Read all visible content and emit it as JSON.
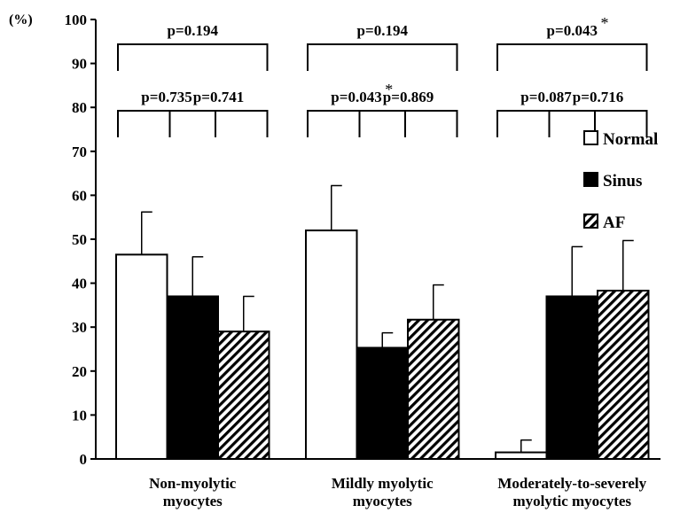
{
  "chart_data": {
    "type": "bar",
    "ylabel": "(%)",
    "ylim": [
      0,
      100
    ],
    "yticks": [
      "0",
      "10",
      "20",
      "30",
      "40",
      "50",
      "60",
      "70",
      "80",
      "90",
      "100"
    ],
    "grid": false,
    "legend_position": "right",
    "categories": [
      [
        "Non-myolytic",
        "myocytes"
      ],
      [
        "Mildly myolytic",
        "myocytes"
      ],
      [
        "Moderately-to-severely",
        "myolytic myocytes"
      ]
    ],
    "series": [
      {
        "name": "Normal",
        "fill": "white",
        "values": [
          46.5,
          52,
          1.5
        ],
        "errors": [
          9.7,
          10.2,
          2.8
        ]
      },
      {
        "name": "Sinus",
        "fill": "black",
        "values": [
          37,
          25.3,
          37
        ],
        "errors": [
          9,
          3.4,
          11.3
        ]
      },
      {
        "name": "AF",
        "fill": "hatch",
        "values": [
          29,
          31.7,
          38.3
        ],
        "errors": [
          8,
          7.9,
          11.4
        ]
      }
    ],
    "comparisons": [
      {
        "group": 0,
        "from": 0,
        "to": 2,
        "label": "p=0.194",
        "star": ""
      },
      {
        "group": 0,
        "from": 0,
        "to": 1,
        "label": "p=0.735",
        "star": ""
      },
      {
        "group": 0,
        "from": 1,
        "to": 2,
        "label": "p=0.741",
        "star": ""
      },
      {
        "group": 1,
        "from": 0,
        "to": 2,
        "label": "p=0.194",
        "star": ""
      },
      {
        "group": 1,
        "from": 0,
        "to": 1,
        "label": "p=0.043",
        "star": "*"
      },
      {
        "group": 1,
        "from": 1,
        "to": 2,
        "label": "p=0.869",
        "star": ""
      },
      {
        "group": 2,
        "from": 0,
        "to": 2,
        "label": "p=0.043",
        "star": "*"
      },
      {
        "group": 2,
        "from": 0,
        "to": 1,
        "label": "p=0.087",
        "star": ""
      },
      {
        "group": 2,
        "from": 1,
        "to": 2,
        "label": "p=0.716",
        "star": ""
      }
    ]
  }
}
